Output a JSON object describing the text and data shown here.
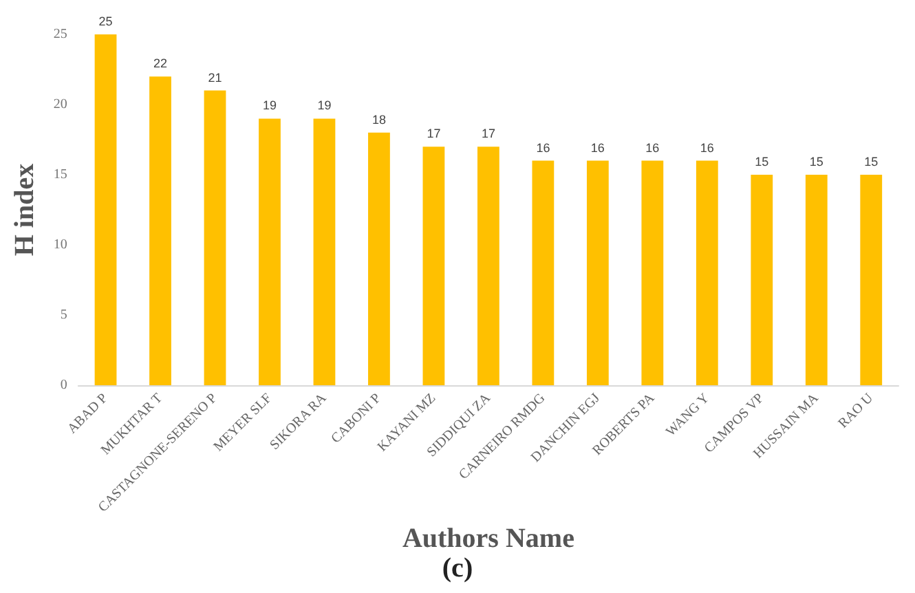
{
  "chart_data": {
    "type": "bar",
    "categories": [
      "ABAD P",
      "MUKHTAR T",
      "CASTAGNONE-SERENO P",
      "MEYER SLF",
      "SIKORA RA",
      "CABONI P",
      "KAYANI MZ",
      "SIDDIQUI ZA",
      "CARNEIRO RMDG",
      "DANCHIN EGJ",
      "ROBERTS PA",
      "WANG Y",
      "CAMPOS VP",
      "HUSSAIN MA",
      "RAO U"
    ],
    "values": [
      25,
      22,
      21,
      19,
      19,
      18,
      17,
      17,
      16,
      16,
      16,
      16,
      15,
      15,
      15
    ],
    "color": "#ffc000",
    "xlabel": "Authors Name",
    "ylabel": "H index",
    "ylim": [
      0,
      25
    ],
    "yticks": [
      0,
      5,
      10,
      15,
      20,
      25
    ],
    "data_labels": true,
    "grid": false,
    "annotations": [
      "(c)"
    ]
  }
}
